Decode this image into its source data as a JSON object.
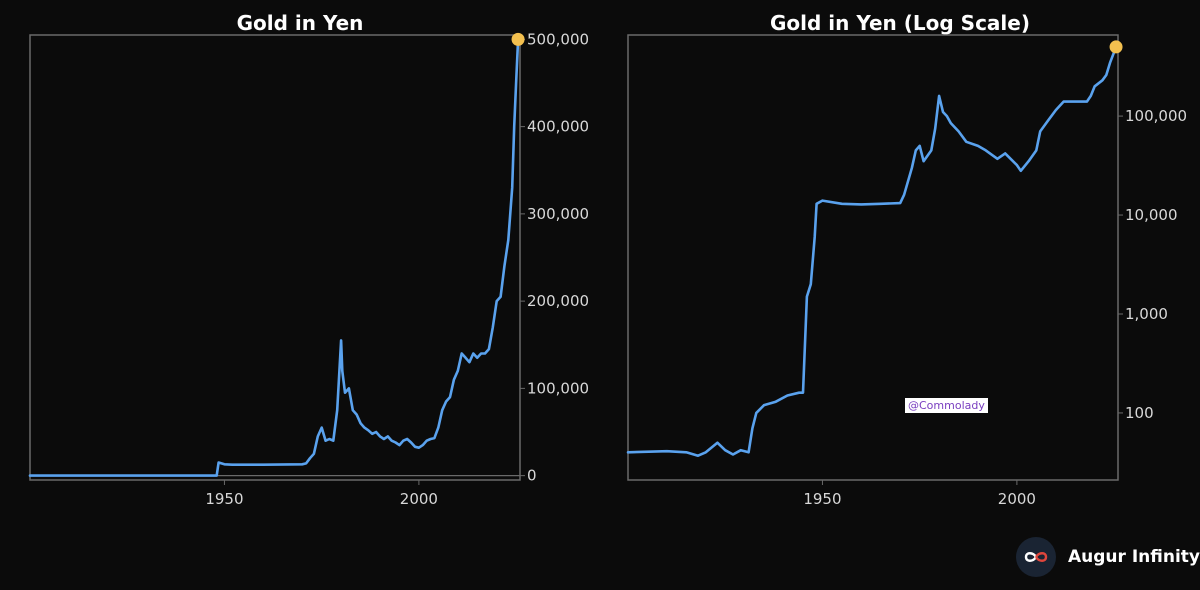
{
  "chart_data": [
    {
      "type": "line",
      "title": "Gold in Yen",
      "xlabel": "",
      "ylabel": "",
      "xlim": [
        1900,
        2026
      ],
      "ylim": [
        -5000,
        505000
      ],
      "y_scale": "linear",
      "x_ticks": [
        1950,
        2000
      ],
      "y_ticks": [
        0,
        100000,
        200000,
        300000,
        400000,
        500000
      ],
      "y_tick_labels": [
        "0",
        "100,000",
        "200,000",
        "300,000",
        "400,000",
        "500,000"
      ],
      "grid": false,
      "legend": "none",
      "series": [
        {
          "color": "#5aa2ee",
          "x": [
            1900,
            1948,
            1948.5,
            1950,
            1952,
            1960,
            1970,
            1971,
            1972,
            1973,
            1974,
            1975,
            1976,
            1977,
            1978,
            1979,
            1980,
            1980.3,
            1981,
            1982,
            1983,
            1984,
            1985,
            1986,
            1987,
            1988,
            1989,
            1990,
            1991,
            1992,
            1993,
            1994,
            1995,
            1996,
            1997,
            1998,
            1999,
            2000,
            2001,
            2002,
            2003,
            2004,
            2005,
            2006,
            2007,
            2008,
            2009,
            2010,
            2011,
            2012,
            2013,
            2014,
            2015,
            2016,
            2017,
            2018,
            2019,
            2020,
            2021,
            2022,
            2023,
            2024,
            2024.5,
            2025,
            2025.5
          ],
          "y": [
            0,
            0,
            15000,
            13000,
            12500,
            12500,
            13000,
            14000,
            20000,
            25000,
            45000,
            55000,
            40000,
            42000,
            40000,
            75000,
            155000,
            120000,
            95000,
            100000,
            75000,
            70000,
            60000,
            55000,
            52000,
            48000,
            50000,
            45000,
            42000,
            45000,
            40000,
            38000,
            35000,
            40000,
            42000,
            38000,
            33000,
            32000,
            35000,
            40000,
            42000,
            43000,
            55000,
            75000,
            85000,
            90000,
            110000,
            120000,
            140000,
            135000,
            130000,
            140000,
            135000,
            140000,
            140000,
            145000,
            170000,
            200000,
            205000,
            240000,
            270000,
            330000,
            400000,
            450000,
            500000
          ]
        }
      ],
      "end_marker": {
        "x": 2025.5,
        "y": 500000
      }
    },
    {
      "type": "line",
      "title": "Gold in Yen (Log Scale)",
      "xlabel": "",
      "ylabel": "",
      "xlim": [
        1900,
        2026
      ],
      "ylim": [
        21,
        660000
      ],
      "y_scale": "log",
      "x_ticks": [
        1950,
        2000
      ],
      "y_ticks": [
        100,
        1000,
        10000,
        100000
      ],
      "y_tick_labels": [
        "100",
        "1,000",
        "10,000",
        "100,000"
      ],
      "grid": false,
      "legend": "none",
      "series": [
        {
          "color": "#5aa2ee",
          "x": [
            1900,
            1910,
            1915,
            1918,
            1920,
            1923,
            1925,
            1927,
            1929,
            1931,
            1932,
            1933,
            1935,
            1938,
            1941,
            1944,
            1945,
            1946,
            1947,
            1948,
            1948.5,
            1950,
            1955,
            1960,
            1965,
            1970,
            1971,
            1973,
            1974,
            1975,
            1976,
            1978,
            1979,
            1980,
            1981,
            1982,
            1983,
            1985,
            1987,
            1990,
            1992,
            1995,
            1997,
            2000,
            2001,
            2003,
            2005,
            2006,
            2008,
            2010,
            2012,
            2015,
            2018,
            2019,
            2020,
            2022,
            2023,
            2024,
            2025.5
          ],
          "y": [
            40,
            41,
            40,
            37,
            40,
            50,
            42,
            38,
            42,
            40,
            70,
            100,
            120,
            130,
            150,
            160,
            160,
            1500,
            2000,
            6000,
            13000,
            14000,
            13000,
            12800,
            13000,
            13200,
            16000,
            30000,
            45000,
            50000,
            35000,
            45000,
            75000,
            160000,
            110000,
            100000,
            85000,
            70000,
            55000,
            50000,
            45000,
            37000,
            42000,
            32000,
            28000,
            35000,
            45000,
            70000,
            90000,
            115000,
            140000,
            140000,
            140000,
            160000,
            200000,
            230000,
            260000,
            350000,
            500000
          ]
        }
      ],
      "end_marker": {
        "x": 2025.5,
        "y": 500000
      }
    }
  ],
  "watermark": "@Commolady",
  "brand": {
    "name": "Augur Infinity",
    "logo_icon": "infinity-icon",
    "logo_colors": [
      "#ffffff",
      "#e0463c"
    ]
  },
  "colors": {
    "background": "#0b0b0b",
    "line": "#5aa2ee",
    "end_marker": "#f3c04f",
    "frame": "#6a6a6a"
  }
}
